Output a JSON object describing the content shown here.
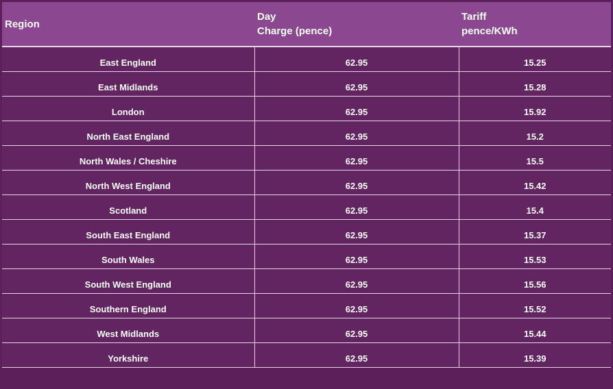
{
  "table": {
    "headers": [
      "Region",
      "Day\nCharge (pence)",
      "Tariff\npence/KWh"
    ],
    "header_lines": [
      [
        "Region"
      ],
      [
        "Day",
        "Charge (pence)"
      ],
      [
        "Tariff",
        "pence/KWh"
      ]
    ],
    "rows": [
      [
        "East England",
        "62.95",
        "15.25"
      ],
      [
        "East Midlands",
        "62.95",
        "15.28"
      ],
      [
        "London",
        "62.95",
        "15.92"
      ],
      [
        "North East England",
        "62.95",
        "15.2"
      ],
      [
        "North Wales / Cheshire",
        "62.95",
        "15.5"
      ],
      [
        "North West England",
        "62.95",
        "15.42"
      ],
      [
        "Scotland",
        "62.95",
        "15.4"
      ],
      [
        "South East England",
        "62.95",
        "15.37"
      ],
      [
        "South Wales",
        "62.95",
        "15.53"
      ],
      [
        "South West England",
        "62.95",
        "15.56"
      ],
      [
        "Southern England",
        "62.95",
        "15.52"
      ],
      [
        "West Midlands",
        "62.95",
        "15.44"
      ],
      [
        "Yorkshire",
        "62.95",
        "15.39"
      ]
    ]
  },
  "colors": {
    "header": "#8b4790",
    "body": "#632462",
    "border": "#e6d6e8"
  }
}
